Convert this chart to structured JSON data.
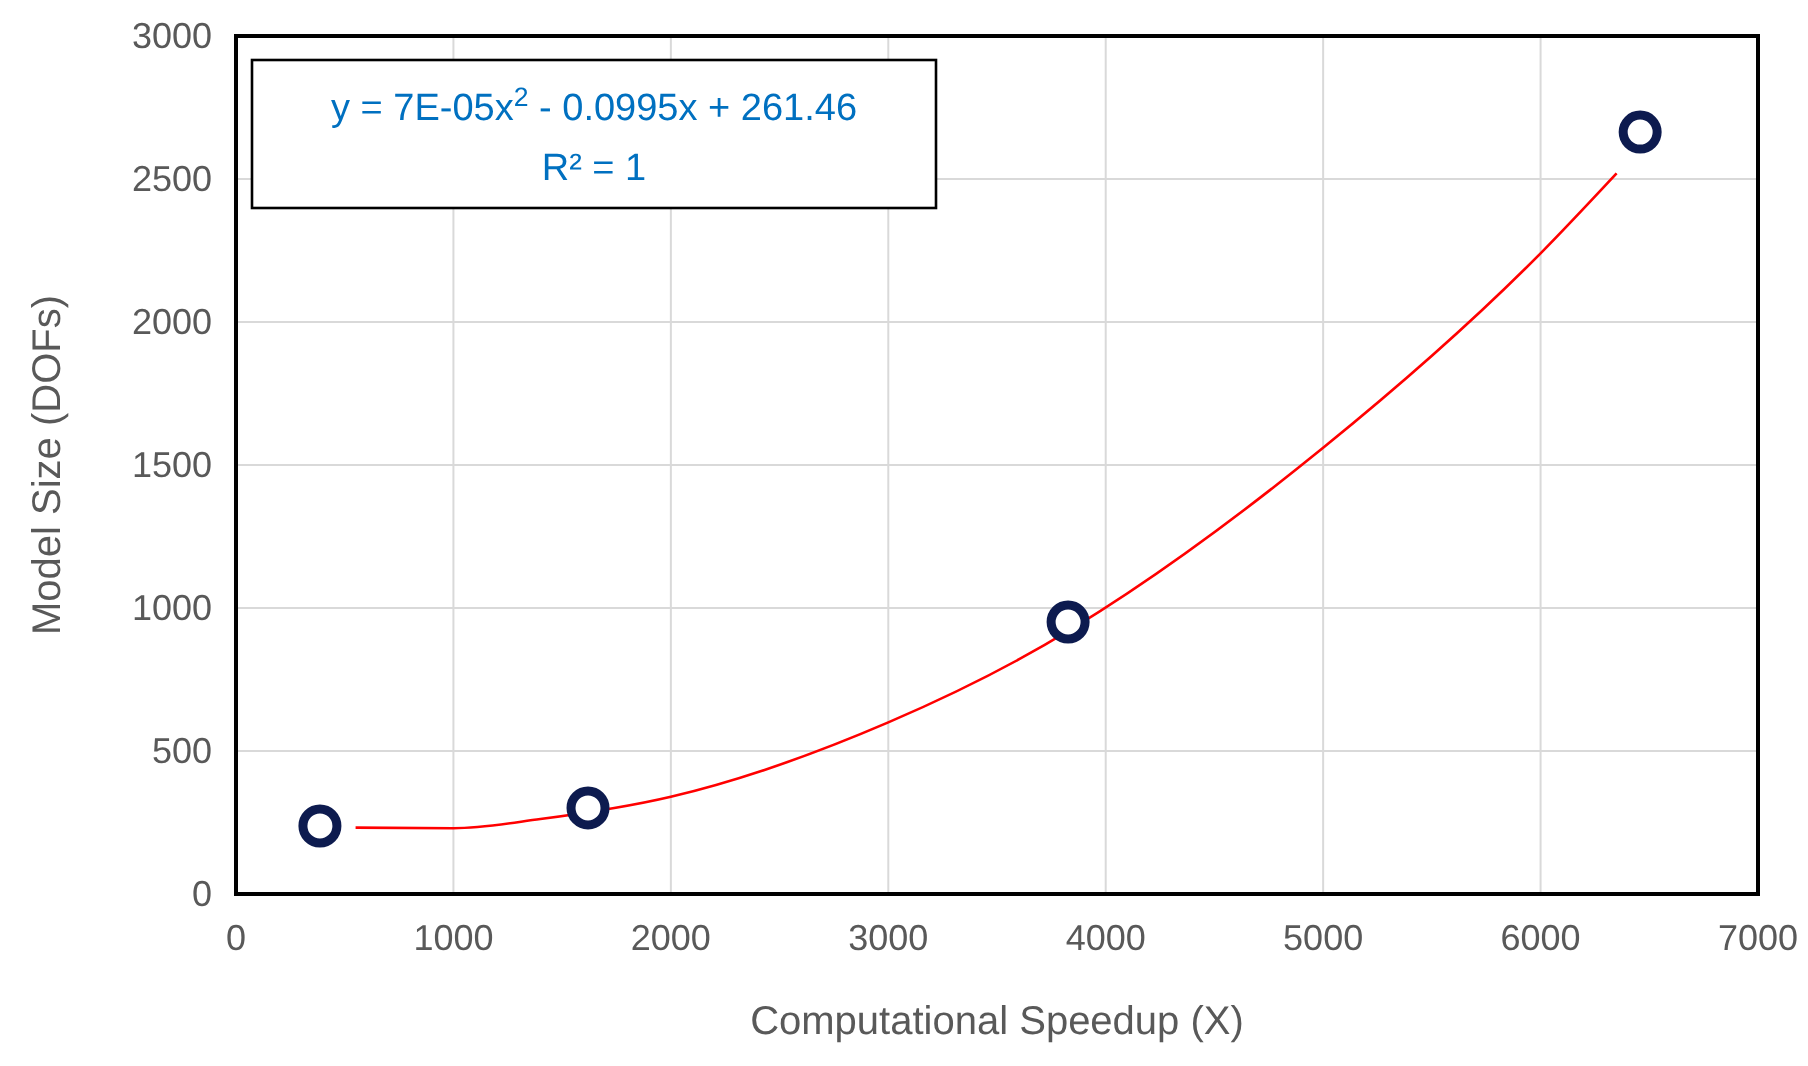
{
  "chart_data": {
    "type": "scatter",
    "xlabel": "Computational Speedup (X)",
    "ylabel": "Model Size (DOFs)",
    "xlim": [
      0,
      7000
    ],
    "xticks": [
      0,
      1000,
      2000,
      3000,
      4000,
      5000,
      6000,
      7000
    ],
    "ylim": [
      0,
      3000
    ],
    "yticks": [
      0,
      500,
      1000,
      1500,
      2000,
      2500,
      3000
    ],
    "grid": true,
    "series": [
      {
        "type": "line",
        "color": "#ff0000",
        "marker": "none",
        "x": [
          550,
          1000,
          1400,
          2000,
          3000,
          3600,
          5000,
          6000,
          6350
        ],
        "values": [
          232,
          230,
          262,
          340,
          600,
          820,
          1560,
          2240,
          2520
        ]
      },
      {
        "color": "#0d1b4f",
        "marker": "circle",
        "x": [
          386,
          1619,
          3827,
          6458
        ],
        "values": [
          238,
          301,
          951,
          2664
        ]
      }
    ],
    "annotations": [
      "y = 7E-05x$^{2}$ - 0.0995x + 261.46",
      "R² = 1"
    ]
  }
}
